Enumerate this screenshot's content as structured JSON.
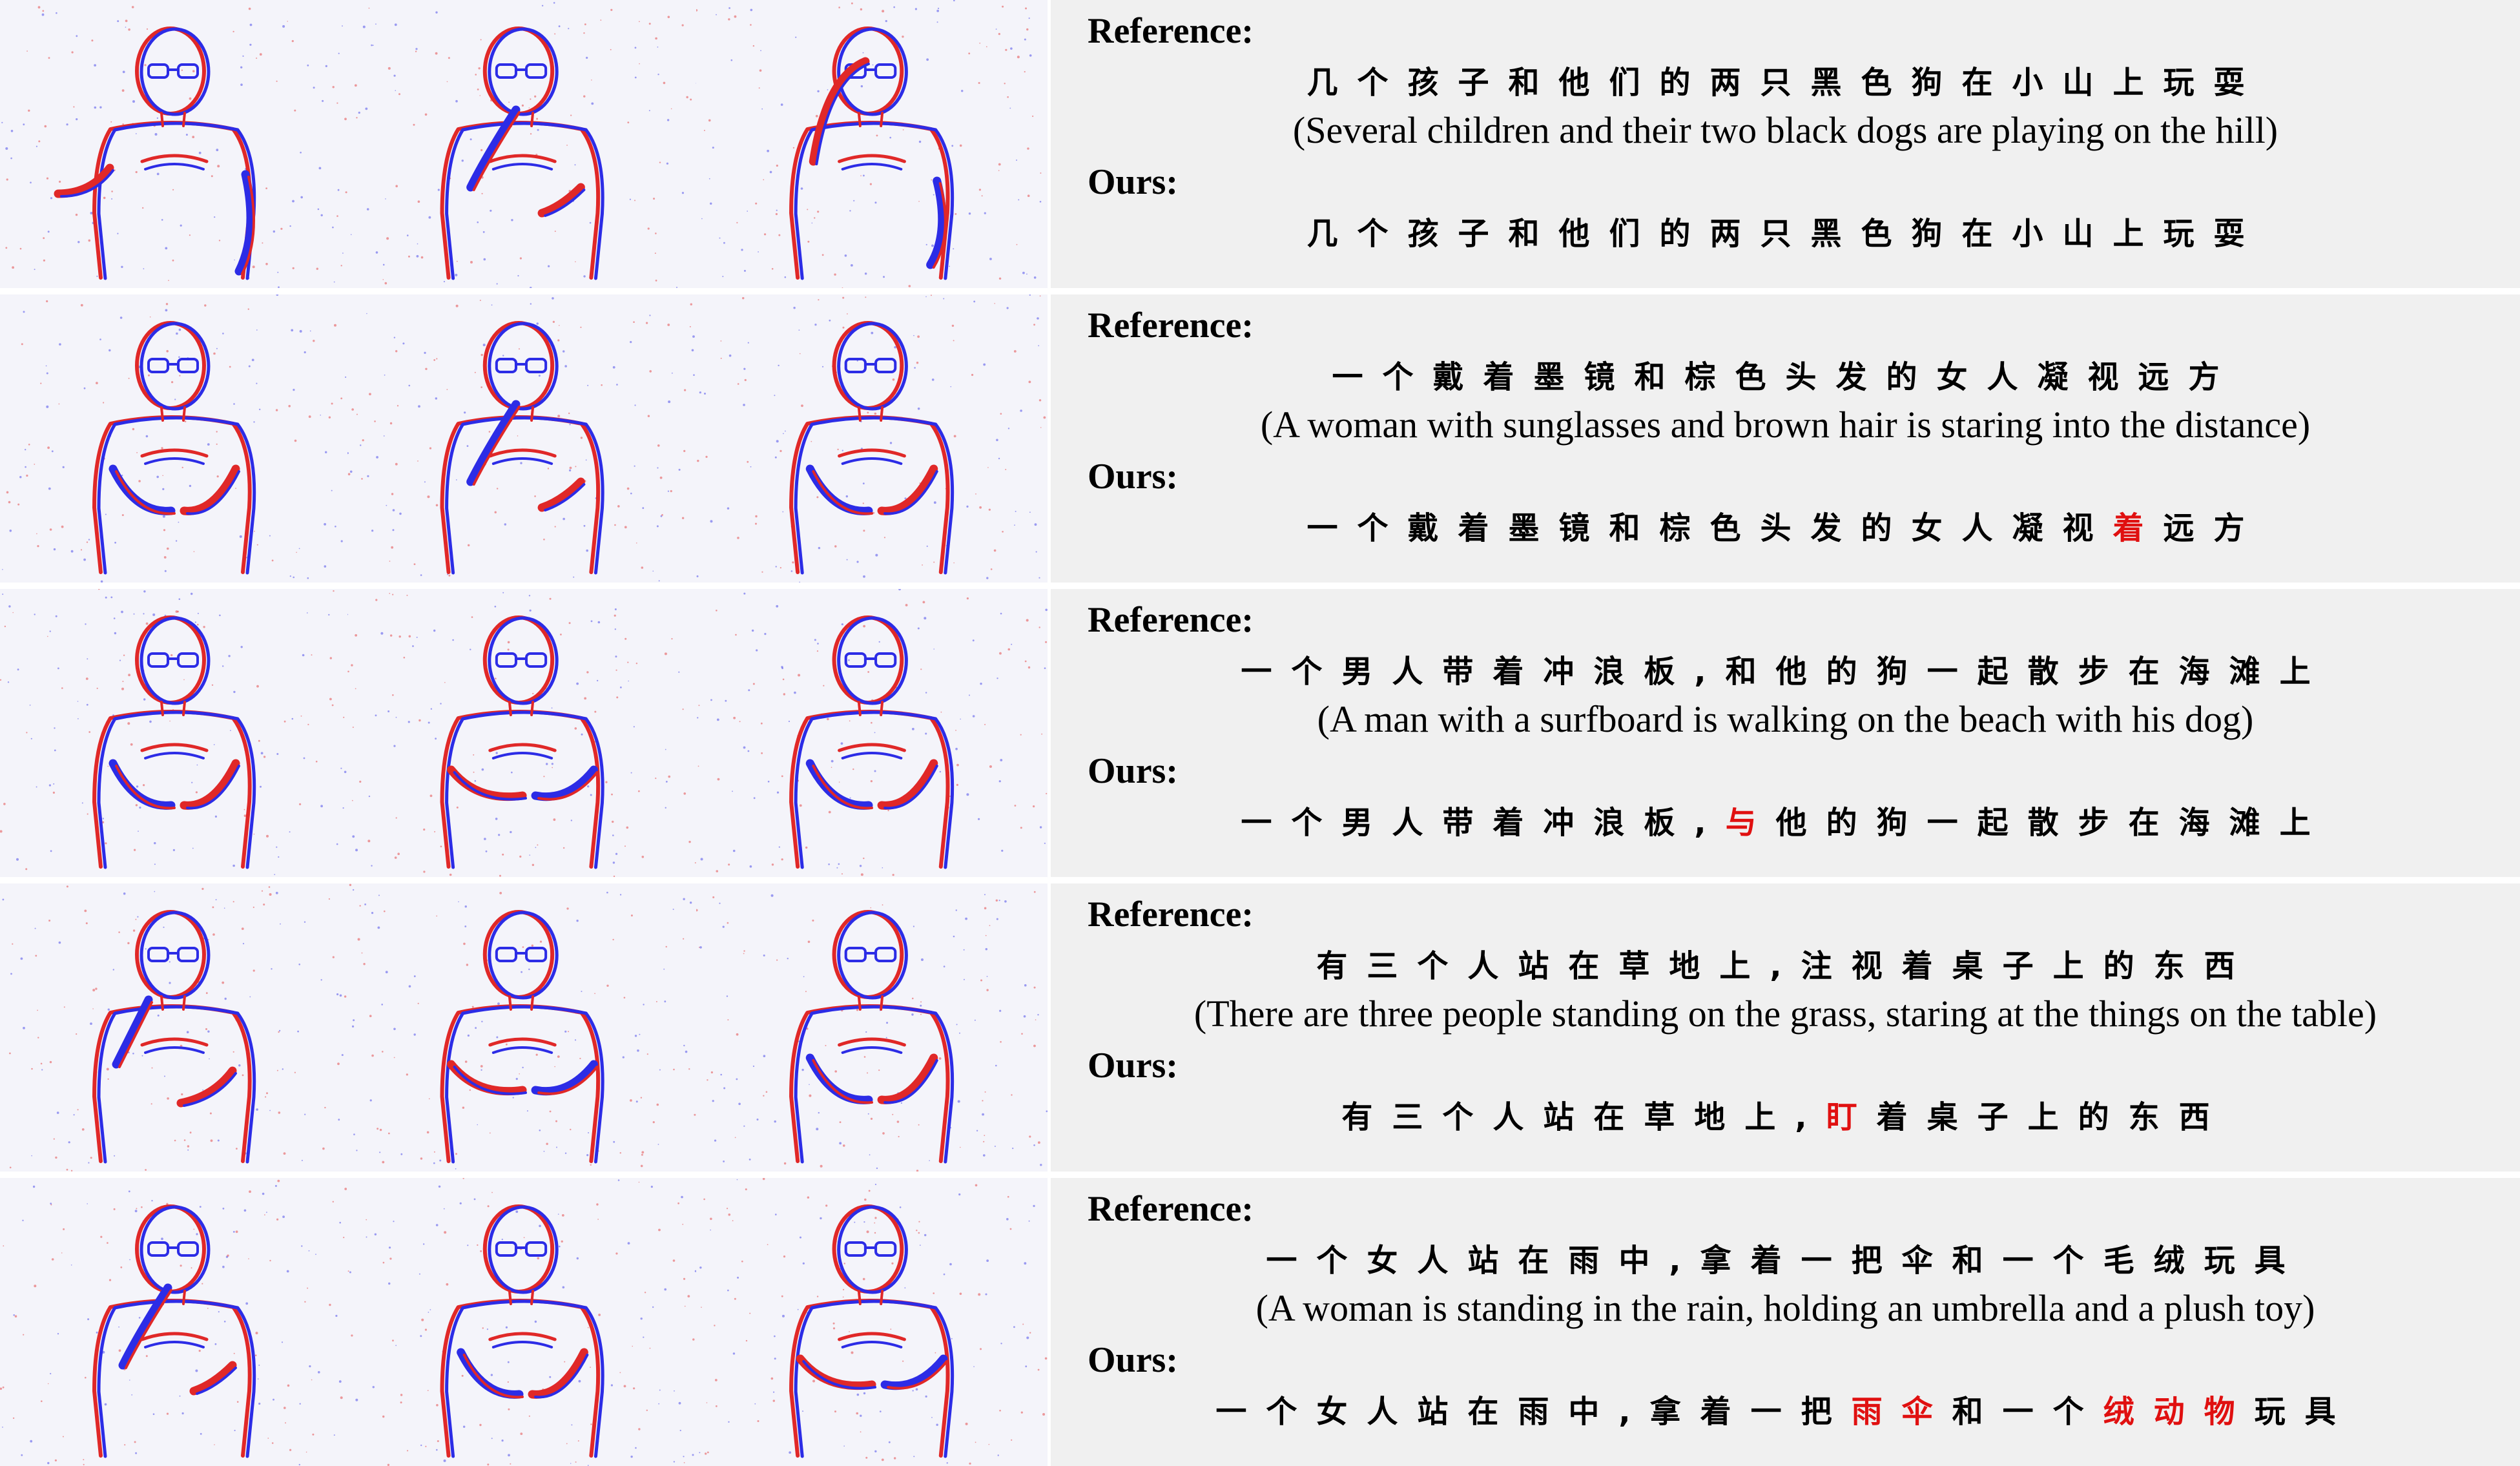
{
  "figure": {
    "rows": [
      {
        "reference_label": "Reference:",
        "reference_chinese": "几个孩子和他们的两只黑色狗在小山上玩耍",
        "english": "(Several children and their two black dogs are playing on the hill)",
        "ours_label": "Ours:",
        "ours_tokens": [
          {
            "text": "几个孩子和他们的两只黑色狗在小山上玩耍",
            "error": false
          }
        ]
      },
      {
        "reference_label": "Reference:",
        "reference_chinese": "一个戴着墨镜和棕色头发的女人凝视远方",
        "english": "(A woman with sunglasses and brown hair is staring into the distance)",
        "ours_label": "Ours:",
        "ours_tokens": [
          {
            "text": "一个戴着墨镜和棕色头发的女人凝视",
            "error": false
          },
          {
            "text": "着",
            "error": true
          },
          {
            "text": "远方",
            "error": false
          }
        ]
      },
      {
        "reference_label": "Reference:",
        "reference_chinese": "一个男人带着冲浪板,和他的狗一起散步在海滩上",
        "english": "(A man with a surfboard is walking on the beach with his dog)",
        "ours_label": "Ours:",
        "ours_tokens": [
          {
            "text": "一个男人带着冲浪板,",
            "error": false
          },
          {
            "text": "与",
            "error": true
          },
          {
            "text": "他的狗一起散步在海滩上",
            "error": false
          }
        ]
      },
      {
        "reference_label": "Reference:",
        "reference_chinese": "有三个人站在草地上,注视着桌子上的东西",
        "english": "(There are three people standing on the grass, staring at the things on the table)",
        "ours_label": "Ours:",
        "ours_tokens": [
          {
            "text": "有三个人站在草地上,",
            "error": false
          },
          {
            "text": "盯",
            "error": true
          },
          {
            "text": "着桌子上的东西",
            "error": false
          }
        ]
      },
      {
        "reference_label": "Reference:",
        "reference_chinese": "一个女人站在雨中,拿着一把伞和一个毛绒玩具",
        "english": "(A woman is standing in the rain, holding an umbrella and a plush toy)",
        "ours_label": "Ours:",
        "ours_tokens": [
          {
            "text": "一个女人站在雨中,拿着一把",
            "error": false
          },
          {
            "text": "雨伞",
            "error": true
          },
          {
            "text": "和一个",
            "error": false
          },
          {
            "text": "绒动物",
            "error": true
          },
          {
            "text": "玩具",
            "error": false
          }
        ]
      }
    ]
  },
  "colors": {
    "event_red": "#e02828",
    "event_blue": "#2c2ce6",
    "error_red": "#e01010",
    "text_panel_bg": "#f0f0f0"
  }
}
